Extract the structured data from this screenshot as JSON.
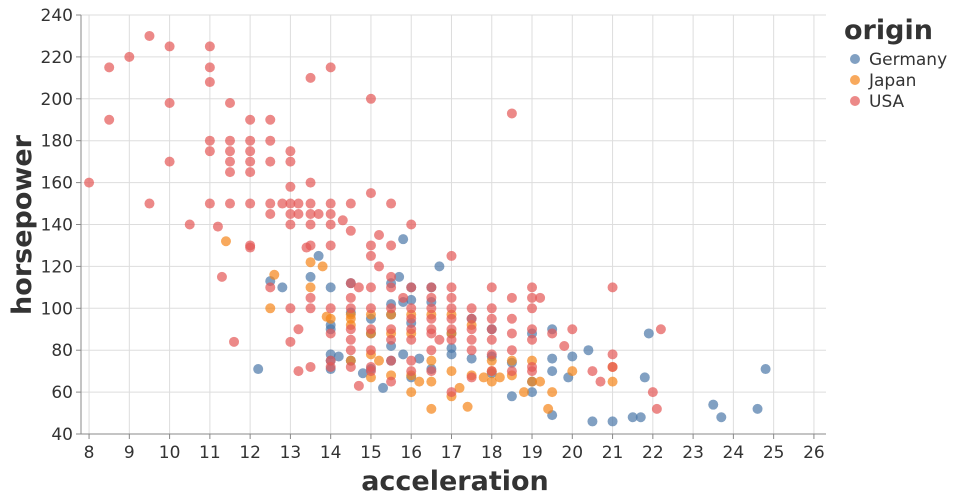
{
  "chart_data": {
    "type": "scatter",
    "xlabel": "acceleration",
    "ylabel": "horsepower",
    "xlim": [
      7.8,
      26.3
    ],
    "ylim": [
      40,
      240
    ],
    "xticks": [
      8,
      9,
      10,
      11,
      12,
      13,
      14,
      15,
      16,
      17,
      18,
      19,
      20,
      21,
      22,
      23,
      24,
      25,
      26
    ],
    "yticks": [
      40,
      60,
      80,
      100,
      120,
      140,
      160,
      180,
      200,
      220,
      240
    ],
    "grid": true,
    "legend": {
      "title": "origin",
      "placement": "top-right"
    },
    "series": [
      {
        "name": "Germany",
        "color": "#4c78a8",
        "points": [
          [
            12.2,
            71
          ],
          [
            12.5,
            113
          ],
          [
            12.8,
            110
          ],
          [
            13.5,
            115
          ],
          [
            13.7,
            125
          ],
          [
            14.0,
            110
          ],
          [
            14.0,
            92
          ],
          [
            14.0,
            90
          ],
          [
            14.0,
            78
          ],
          [
            14.0,
            75
          ],
          [
            14.0,
            71
          ],
          [
            14.2,
            77
          ],
          [
            14.5,
            112
          ],
          [
            14.5,
            98
          ],
          [
            14.5,
            75
          ],
          [
            14.8,
            69
          ],
          [
            15.0,
            95
          ],
          [
            15.0,
            88
          ],
          [
            15.0,
            71
          ],
          [
            15.3,
            62
          ],
          [
            15.5,
            112
          ],
          [
            15.5,
            102
          ],
          [
            15.5,
            97
          ],
          [
            15.5,
            82
          ],
          [
            15.5,
            75
          ],
          [
            15.7,
            115
          ],
          [
            15.8,
            103
          ],
          [
            15.8,
            78
          ],
          [
            15.8,
            133
          ],
          [
            16.0,
            110
          ],
          [
            16.0,
            104
          ],
          [
            16.0,
            93
          ],
          [
            16.0,
            67
          ],
          [
            16.2,
            76
          ],
          [
            16.5,
            110
          ],
          [
            16.5,
            103
          ],
          [
            16.5,
            71
          ],
          [
            16.7,
            120
          ],
          [
            17.0,
            88
          ],
          [
            17.0,
            81
          ],
          [
            17.0,
            78
          ],
          [
            17.5,
            95
          ],
          [
            17.5,
            76
          ],
          [
            18.0,
            90
          ],
          [
            18.0,
            77
          ],
          [
            18.0,
            69
          ],
          [
            18.5,
            58
          ],
          [
            18.5,
            74
          ],
          [
            19.0,
            88
          ],
          [
            19.0,
            65
          ],
          [
            19.0,
            60
          ],
          [
            19.5,
            90
          ],
          [
            19.5,
            76
          ],
          [
            19.5,
            70
          ],
          [
            19.5,
            49
          ],
          [
            19.9,
            67
          ],
          [
            20.0,
            77
          ],
          [
            20.4,
            80
          ],
          [
            20.5,
            46
          ],
          [
            21.0,
            46
          ],
          [
            21.5,
            48
          ],
          [
            21.7,
            48
          ],
          [
            21.8,
            67
          ],
          [
            21.9,
            88
          ],
          [
            23.5,
            54
          ],
          [
            23.7,
            48
          ],
          [
            24.6,
            52
          ],
          [
            24.8,
            71
          ]
        ]
      },
      {
        "name": "Japan",
        "color": "#f58518",
        "points": [
          [
            11.4,
            132
          ],
          [
            12.5,
            100
          ],
          [
            12.6,
            116
          ],
          [
            13.5,
            122
          ],
          [
            13.5,
            110
          ],
          [
            13.8,
            120
          ],
          [
            13.9,
            96
          ],
          [
            14.0,
            95
          ],
          [
            14.5,
            97
          ],
          [
            14.5,
            95
          ],
          [
            14.5,
            92
          ],
          [
            14.5,
            75
          ],
          [
            15.0,
            97
          ],
          [
            15.0,
            88
          ],
          [
            15.0,
            78
          ],
          [
            15.0,
            67
          ],
          [
            15.2,
            75
          ],
          [
            15.5,
            97
          ],
          [
            15.5,
            88
          ],
          [
            15.5,
            68
          ],
          [
            16.0,
            97
          ],
          [
            16.0,
            88
          ],
          [
            16.0,
            68
          ],
          [
            16.0,
            60
          ],
          [
            16.2,
            65
          ],
          [
            16.5,
            97
          ],
          [
            16.5,
            75
          ],
          [
            16.5,
            65
          ],
          [
            16.5,
            52
          ],
          [
            17.0,
            97
          ],
          [
            17.0,
            88
          ],
          [
            17.0,
            70
          ],
          [
            17.0,
            58
          ],
          [
            17.2,
            62
          ],
          [
            17.4,
            53
          ],
          [
            17.5,
            92
          ],
          [
            17.5,
            68
          ],
          [
            17.8,
            67
          ],
          [
            18.0,
            75
          ],
          [
            18.0,
            65
          ],
          [
            18.0,
            70
          ],
          [
            18.2,
            67
          ],
          [
            18.5,
            75
          ],
          [
            18.5,
            68
          ],
          [
            18.8,
            60
          ],
          [
            19.0,
            75
          ],
          [
            19.0,
            65
          ],
          [
            19.2,
            65
          ],
          [
            19.4,
            52
          ],
          [
            19.5,
            60
          ],
          [
            20.0,
            70
          ],
          [
            21.0,
            72
          ],
          [
            21.0,
            65
          ]
        ]
      },
      {
        "name": "USA",
        "color": "#e45756",
        "points": [
          [
            8.0,
            160
          ],
          [
            8.5,
            215
          ],
          [
            8.5,
            190
          ],
          [
            9.0,
            220
          ],
          [
            9.5,
            230
          ],
          [
            9.5,
            150
          ],
          [
            10.0,
            225
          ],
          [
            10.0,
            198
          ],
          [
            10.0,
            170
          ],
          [
            10.5,
            140
          ],
          [
            11.0,
            225
          ],
          [
            11.0,
            215
          ],
          [
            11.0,
            208
          ],
          [
            11.0,
            180
          ],
          [
            11.0,
            175
          ],
          [
            11.0,
            150
          ],
          [
            11.2,
            139
          ],
          [
            11.3,
            115
          ],
          [
            11.5,
            198
          ],
          [
            11.5,
            180
          ],
          [
            11.5,
            175
          ],
          [
            11.5,
            170
          ],
          [
            11.5,
            165
          ],
          [
            11.5,
            150
          ],
          [
            11.6,
            84
          ],
          [
            12.0,
            190
          ],
          [
            12.0,
            180
          ],
          [
            12.0,
            175
          ],
          [
            12.0,
            170
          ],
          [
            12.0,
            165
          ],
          [
            12.0,
            150
          ],
          [
            12.0,
            130
          ],
          [
            12.0,
            129
          ],
          [
            12.5,
            190
          ],
          [
            12.5,
            180
          ],
          [
            12.5,
            170
          ],
          [
            12.5,
            150
          ],
          [
            12.5,
            145
          ],
          [
            12.5,
            110
          ],
          [
            12.8,
            150
          ],
          [
            13.0,
            175
          ],
          [
            13.0,
            170
          ],
          [
            13.0,
            158
          ],
          [
            13.0,
            150
          ],
          [
            13.0,
            145
          ],
          [
            13.0,
            140
          ],
          [
            13.0,
            100
          ],
          [
            13.0,
            84
          ],
          [
            13.2,
            150
          ],
          [
            13.2,
            145
          ],
          [
            13.2,
            70
          ],
          [
            13.2,
            90
          ],
          [
            13.4,
            129
          ],
          [
            13.5,
            210
          ],
          [
            13.5,
            160
          ],
          [
            13.5,
            150
          ],
          [
            13.5,
            145
          ],
          [
            13.5,
            140
          ],
          [
            13.5,
            130
          ],
          [
            13.5,
            105
          ],
          [
            13.5,
            100
          ],
          [
            13.5,
            72
          ],
          [
            13.7,
            145
          ],
          [
            14.0,
            215
          ],
          [
            14.0,
            150
          ],
          [
            14.0,
            145
          ],
          [
            14.0,
            140
          ],
          [
            14.0,
            130
          ],
          [
            14.0,
            100
          ],
          [
            14.0,
            88
          ],
          [
            14.0,
            75
          ],
          [
            14.0,
            72
          ],
          [
            14.3,
            142
          ],
          [
            14.5,
            150
          ],
          [
            14.5,
            137
          ],
          [
            14.5,
            112
          ],
          [
            14.5,
            105
          ],
          [
            14.5,
            100
          ],
          [
            14.5,
            90
          ],
          [
            14.5,
            85
          ],
          [
            14.5,
            80
          ],
          [
            14.5,
            72
          ],
          [
            14.7,
            110
          ],
          [
            14.7,
            63
          ],
          [
            15.0,
            200
          ],
          [
            15.0,
            155
          ],
          [
            15.0,
            130
          ],
          [
            15.0,
            125
          ],
          [
            15.0,
            110
          ],
          [
            15.0,
            100
          ],
          [
            15.0,
            90
          ],
          [
            15.0,
            80
          ],
          [
            15.0,
            72
          ],
          [
            15.0,
            70
          ],
          [
            15.2,
            135
          ],
          [
            15.2,
            120
          ],
          [
            15.5,
            150
          ],
          [
            15.5,
            130
          ],
          [
            15.5,
            115
          ],
          [
            15.5,
            110
          ],
          [
            15.5,
            100
          ],
          [
            15.5,
            90
          ],
          [
            15.5,
            85
          ],
          [
            15.5,
            75
          ],
          [
            15.5,
            65
          ],
          [
            15.8,
            105
          ],
          [
            16.0,
            140
          ],
          [
            16.0,
            110
          ],
          [
            16.0,
            100
          ],
          [
            16.0,
            95
          ],
          [
            16.0,
            90
          ],
          [
            16.0,
            85
          ],
          [
            16.0,
            75
          ],
          [
            16.0,
            70
          ],
          [
            16.5,
            110
          ],
          [
            16.5,
            105
          ],
          [
            16.5,
            100
          ],
          [
            16.5,
            95
          ],
          [
            16.5,
            90
          ],
          [
            16.5,
            88
          ],
          [
            16.5,
            80
          ],
          [
            16.5,
            70
          ],
          [
            16.7,
            85
          ],
          [
            17.0,
            125
          ],
          [
            17.0,
            110
          ],
          [
            17.0,
            105
          ],
          [
            17.0,
            100
          ],
          [
            17.0,
            95
          ],
          [
            17.0,
            90
          ],
          [
            17.0,
            85
          ],
          [
            17.0,
            60
          ],
          [
            17.5,
            100
          ],
          [
            17.5,
            95
          ],
          [
            17.5,
            90
          ],
          [
            17.5,
            85
          ],
          [
            17.5,
            80
          ],
          [
            17.5,
            67
          ],
          [
            18.0,
            110
          ],
          [
            18.0,
            100
          ],
          [
            18.0,
            95
          ],
          [
            18.0,
            90
          ],
          [
            18.0,
            85
          ],
          [
            18.0,
            78
          ],
          [
            18.0,
            70
          ],
          [
            18.5,
            193
          ],
          [
            18.5,
            105
          ],
          [
            18.5,
            95
          ],
          [
            18.5,
            88
          ],
          [
            18.5,
            80
          ],
          [
            18.5,
            70
          ],
          [
            19.0,
            110
          ],
          [
            19.0,
            105
          ],
          [
            19.0,
            100
          ],
          [
            19.0,
            90
          ],
          [
            19.0,
            85
          ],
          [
            19.0,
            72
          ],
          [
            19.0,
            70
          ],
          [
            19.2,
            105
          ],
          [
            19.5,
            88
          ],
          [
            19.8,
            82
          ],
          [
            20.0,
            90
          ],
          [
            20.5,
            70
          ],
          [
            20.7,
            65
          ],
          [
            21.0,
            110
          ],
          [
            21.0,
            78
          ],
          [
            21.0,
            72
          ],
          [
            22.0,
            60
          ],
          [
            22.1,
            52
          ],
          [
            22.2,
            90
          ]
        ]
      }
    ]
  }
}
